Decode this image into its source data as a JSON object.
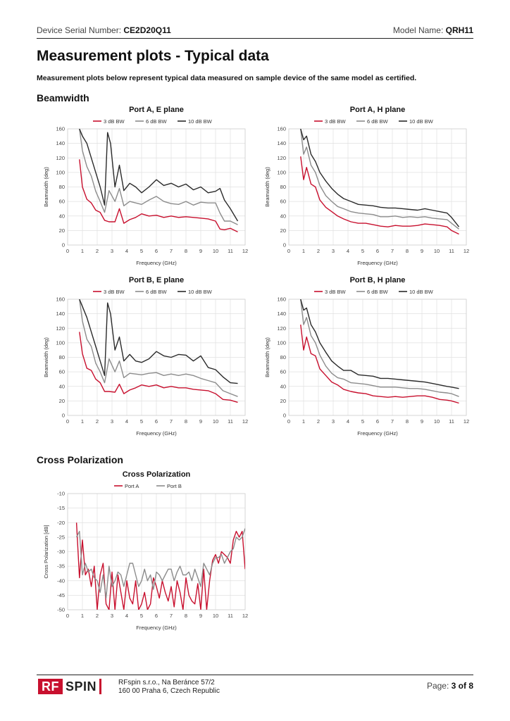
{
  "header": {
    "serial_label": "Device Serial Number:",
    "serial_value": "CE2D20Q11",
    "model_label": "Model Name:",
    "model_value": "QRH11"
  },
  "page_title": "Measurement plots - Typical data",
  "subtitle": "Measurement plots below represent typical data measured on sample device of the same model as certified.",
  "sections": {
    "beamwidth": "Beamwidth",
    "cross_polarization": "Cross Polarization"
  },
  "colors": {
    "bw3": "#c8102e",
    "bw6": "#8c8c8c",
    "bw10": "#2a2a2a",
    "portA": "#c8102e",
    "portB": "#8c8c8c"
  },
  "footer": {
    "logo_rf": "RF",
    "logo_spin": "SPIN",
    "address_line1": "RFspin s.r.o., Na Beránce 57/2",
    "address_line2": "160 00 Praha 6, Czech Republic",
    "page_label": "Page:",
    "page_value": "3 of 8"
  },
  "chart_data": [
    {
      "type": "line",
      "title": "Port A, E plane",
      "xlabel": "Frequency (GHz)",
      "ylabel": "Beamwidth (deg)",
      "xlim": [
        0,
        12
      ],
      "ylim": [
        0,
        160
      ],
      "xticks": [
        0,
        1,
        2,
        3,
        4,
        5,
        6,
        7,
        8,
        9,
        10,
        11,
        12
      ],
      "yticks": [
        0,
        20,
        40,
        60,
        80,
        100,
        120,
        140,
        160
      ],
      "grid": true,
      "legend": "top",
      "series": [
        {
          "name": "3 dB BW",
          "x": [
            0.8,
            1,
            1.3,
            1.6,
            1.9,
            2.2,
            2.5,
            2.8,
            3.2,
            3.5,
            3.8,
            4.2,
            4.6,
            5,
            5.5,
            6,
            6.5,
            7,
            7.5,
            8,
            8.5,
            9,
            9.5,
            10,
            10.3,
            10.6,
            11,
            11.5
          ],
          "y": [
            118,
            80,
            63,
            58,
            48,
            45,
            34,
            32,
            32,
            50,
            30,
            35,
            38,
            43,
            40,
            41,
            38,
            40,
            38,
            39,
            38,
            37,
            36,
            33,
            22,
            21,
            23,
            18
          ]
        },
        {
          "name": "6 dB BW",
          "x": [
            0.8,
            1,
            1.3,
            1.6,
            1.9,
            2.2,
            2.5,
            2.8,
            3.2,
            3.5,
            3.8,
            4.2,
            4.6,
            5,
            5.5,
            6,
            6.5,
            7,
            7.5,
            8,
            8.5,
            9,
            9.5,
            10,
            10.3,
            10.6,
            11,
            11.5
          ],
          "y": [
            160,
            130,
            108,
            95,
            74,
            60,
            45,
            75,
            60,
            78,
            54,
            60,
            58,
            56,
            62,
            67,
            60,
            57,
            56,
            60,
            55,
            59,
            58,
            58,
            44,
            33,
            33,
            28
          ]
        },
        {
          "name": "10 dB BW",
          "x": [
            0.8,
            1,
            1.3,
            1.6,
            1.9,
            2.2,
            2.5,
            2.7,
            2.9,
            3.2,
            3.5,
            3.8,
            4.2,
            4.6,
            5,
            5.5,
            6,
            6.5,
            7,
            7.5,
            8,
            8.5,
            9,
            9.5,
            10,
            10.3,
            10.6,
            11,
            11.5
          ],
          "y": [
            160,
            150,
            140,
            120,
            100,
            80,
            55,
            155,
            140,
            80,
            110,
            75,
            85,
            80,
            72,
            80,
            90,
            82,
            85,
            80,
            84,
            76,
            80,
            72,
            74,
            78,
            62,
            50,
            33
          ]
        }
      ]
    },
    {
      "type": "line",
      "title": "Port A, H plane",
      "xlabel": "Frequency (GHz)",
      "ylabel": "Beamwidth (deg)",
      "xlim": [
        0,
        12
      ],
      "ylim": [
        0,
        160
      ],
      "xticks": [
        0,
        1,
        2,
        3,
        4,
        5,
        6,
        7,
        8,
        9,
        10,
        11,
        12
      ],
      "yticks": [
        0,
        20,
        40,
        60,
        80,
        100,
        120,
        140,
        160
      ],
      "grid": true,
      "legend": "top",
      "series": [
        {
          "name": "3 dB BW",
          "x": [
            0.8,
            1,
            1.2,
            1.5,
            1.8,
            2.1,
            2.5,
            2.9,
            3.3,
            3.7,
            4.2,
            4.7,
            5.2,
            5.7,
            6.2,
            6.7,
            7.2,
            7.7,
            8.2,
            8.7,
            9.2,
            9.7,
            10.2,
            10.7,
            11,
            11.5
          ],
          "y": [
            122,
            90,
            107,
            84,
            80,
            62,
            52,
            46,
            40,
            36,
            32,
            30,
            30,
            28,
            26,
            25,
            27,
            26,
            26,
            27,
            29,
            28,
            27,
            25,
            20,
            15
          ]
        },
        {
          "name": "6 dB BW",
          "x": [
            0.8,
            1,
            1.2,
            1.5,
            1.8,
            2.1,
            2.5,
            2.9,
            3.3,
            3.7,
            4.2,
            4.7,
            5.2,
            5.7,
            6.2,
            6.7,
            7.2,
            7.7,
            8.2,
            8.7,
            9.2,
            9.7,
            10.2,
            10.7,
            11,
            11.5
          ],
          "y": [
            160,
            125,
            135,
            110,
            100,
            82,
            68,
            60,
            53,
            50,
            46,
            44,
            43,
            42,
            39,
            39,
            40,
            38,
            39,
            38,
            39,
            37,
            36,
            35,
            30,
            22
          ]
        },
        {
          "name": "10 dB BW",
          "x": [
            0.8,
            1,
            1.2,
            1.5,
            1.8,
            2.1,
            2.5,
            2.9,
            3.3,
            3.7,
            4.2,
            4.7,
            5.2,
            5.7,
            6.2,
            6.7,
            7.2,
            7.7,
            8.2,
            8.7,
            9.2,
            9.7,
            10.2,
            10.7,
            11,
            11.5
          ],
          "y": [
            160,
            145,
            150,
            125,
            115,
            100,
            88,
            78,
            70,
            64,
            60,
            56,
            55,
            54,
            52,
            51,
            51,
            50,
            49,
            48,
            50,
            48,
            46,
            44,
            38,
            25
          ]
        }
      ]
    },
    {
      "type": "line",
      "title": "Port B, E plane",
      "xlabel": "Frequency (GHz)",
      "ylabel": "Beamwidth (deg)",
      "xlim": [
        0,
        12
      ],
      "ylim": [
        0,
        160
      ],
      "xticks": [
        0,
        1,
        2,
        3,
        4,
        5,
        6,
        7,
        8,
        9,
        10,
        11,
        12
      ],
      "yticks": [
        0,
        20,
        40,
        60,
        80,
        100,
        120,
        140,
        160
      ],
      "grid": true,
      "legend": "top",
      "series": [
        {
          "name": "3 dB BW",
          "x": [
            0.8,
            1,
            1.3,
            1.6,
            1.9,
            2.2,
            2.5,
            2.8,
            3.2,
            3.5,
            3.8,
            4.2,
            4.6,
            5,
            5.5,
            6,
            6.5,
            7,
            7.5,
            8,
            8.5,
            9,
            9.5,
            10,
            10.5,
            11,
            11.5
          ],
          "y": [
            115,
            85,
            65,
            62,
            50,
            45,
            33,
            33,
            32,
            43,
            30,
            35,
            38,
            42,
            40,
            42,
            38,
            40,
            38,
            38,
            36,
            35,
            34,
            30,
            22,
            21,
            18
          ]
        },
        {
          "name": "6 dB BW",
          "x": [
            0.8,
            1,
            1.3,
            1.6,
            1.9,
            2.2,
            2.5,
            2.8,
            3.2,
            3.5,
            3.8,
            4.2,
            4.6,
            5,
            5.5,
            6,
            6.5,
            7,
            7.5,
            8,
            8.5,
            9,
            9.5,
            10,
            10.5,
            11,
            11.5
          ],
          "y": [
            160,
            130,
            105,
            95,
            72,
            60,
            45,
            78,
            60,
            75,
            52,
            58,
            57,
            56,
            58,
            59,
            55,
            57,
            55,
            57,
            55,
            51,
            48,
            45,
            34,
            30,
            26
          ]
        },
        {
          "name": "10 dB BW",
          "x": [
            0.8,
            1,
            1.3,
            1.6,
            1.9,
            2.2,
            2.5,
            2.7,
            2.9,
            3.2,
            3.5,
            3.8,
            4.2,
            4.6,
            5,
            5.5,
            6,
            6.5,
            7,
            7.5,
            8,
            8.5,
            9,
            9.5,
            10,
            10.5,
            11,
            11.5
          ],
          "y": [
            160,
            150,
            135,
            115,
            95,
            75,
            55,
            155,
            140,
            90,
            108,
            75,
            84,
            75,
            73,
            78,
            88,
            82,
            80,
            84,
            83,
            75,
            82,
            66,
            63,
            53,
            45,
            44
          ]
        }
      ]
    },
    {
      "type": "line",
      "title": "Port B, H plane",
      "xlabel": "Frequency (GHz)",
      "ylabel": "Beamwidth (deg)",
      "xlim": [
        0,
        12
      ],
      "ylim": [
        0,
        160
      ],
      "xticks": [
        0,
        1,
        2,
        3,
        4,
        5,
        6,
        7,
        8,
        9,
        10,
        11,
        12
      ],
      "yticks": [
        0,
        20,
        40,
        60,
        80,
        100,
        120,
        140,
        160
      ],
      "grid": true,
      "legend": "top",
      "series": [
        {
          "name": "3 dB BW",
          "x": [
            0.8,
            1,
            1.2,
            1.5,
            1.8,
            2.1,
            2.5,
            2.9,
            3.3,
            3.7,
            4.2,
            4.7,
            5.2,
            5.7,
            6.2,
            6.7,
            7.2,
            7.7,
            8.2,
            8.7,
            9.2,
            9.7,
            10.2,
            10.7,
            11,
            11.5
          ],
          "y": [
            125,
            90,
            108,
            85,
            82,
            64,
            55,
            46,
            42,
            36,
            33,
            31,
            30,
            27,
            26,
            25,
            26,
            25,
            26,
            27,
            27,
            25,
            22,
            21,
            20,
            17
          ]
        },
        {
          "name": "6 dB BW",
          "x": [
            0.8,
            1,
            1.2,
            1.5,
            1.8,
            2.1,
            2.5,
            2.9,
            3.3,
            3.7,
            4.2,
            4.7,
            5.2,
            5.7,
            6.2,
            6.7,
            7.2,
            7.7,
            8.2,
            8.7,
            9.2,
            9.7,
            10.2,
            10.7,
            11,
            11.5
          ],
          "y": [
            160,
            125,
            135,
            110,
            100,
            83,
            68,
            58,
            52,
            50,
            45,
            44,
            43,
            41,
            39,
            39,
            39,
            38,
            37,
            37,
            36,
            34,
            32,
            31,
            30,
            26
          ]
        },
        {
          "name": "10 dB BW",
          "x": [
            0.8,
            1,
            1.2,
            1.5,
            1.8,
            2.1,
            2.5,
            2.9,
            3.3,
            3.7,
            4.2,
            4.7,
            5.2,
            5.7,
            6.2,
            6.7,
            7.2,
            7.7,
            8.2,
            8.7,
            9.2,
            9.7,
            10.2,
            10.7,
            11,
            11.5
          ],
          "y": [
            160,
            145,
            148,
            125,
            115,
            100,
            87,
            75,
            68,
            62,
            62,
            56,
            55,
            54,
            51,
            51,
            50,
            49,
            48,
            47,
            46,
            44,
            42,
            40,
            39,
            37
          ]
        }
      ]
    },
    {
      "type": "line",
      "title": "Cross Polarization",
      "xlabel": "Frequency (GHz)",
      "ylabel": "Cross Polarization [dB]",
      "xlim": [
        0,
        12
      ],
      "ylim": [
        -50,
        -10
      ],
      "xticks": [
        0,
        1,
        2,
        3,
        4,
        5,
        6,
        7,
        8,
        9,
        10,
        11,
        12
      ],
      "yticks": [
        -10,
        -15,
        -20,
        -25,
        -30,
        -35,
        -40,
        -45,
        -50
      ],
      "grid": true,
      "legend": "top",
      "series": [
        {
          "name": "Port A",
          "x": [
            0.6,
            0.8,
            1,
            1.2,
            1.4,
            1.6,
            1.8,
            2,
            2.2,
            2.4,
            2.6,
            2.8,
            3,
            3.2,
            3.4,
            3.6,
            3.8,
            4,
            4.2,
            4.4,
            4.6,
            4.8,
            5,
            5.2,
            5.4,
            5.6,
            5.8,
            6,
            6.2,
            6.4,
            6.6,
            6.8,
            7,
            7.2,
            7.4,
            7.6,
            7.8,
            8,
            8.2,
            8.4,
            8.6,
            8.8,
            9,
            9.2,
            9.4,
            9.6,
            9.8,
            10,
            10.2,
            10.4,
            10.6,
            10.8,
            11,
            11.2,
            11.4,
            11.6,
            11.8,
            12
          ],
          "y": [
            -20,
            -39,
            -26,
            -38,
            -36,
            -42,
            -35,
            -50,
            -38,
            -34,
            -48,
            -50,
            -37,
            -50,
            -38,
            -44,
            -50,
            -40,
            -46,
            -48,
            -40,
            -50,
            -48,
            -44,
            -50,
            -48,
            -39,
            -42,
            -46,
            -40,
            -44,
            -47,
            -42,
            -49,
            -40,
            -44,
            -50,
            -39,
            -45,
            -47,
            -48,
            -41,
            -50,
            -36,
            -50,
            -40,
            -33,
            -31,
            -34,
            -30,
            -31,
            -32,
            -34,
            -26,
            -23,
            -25,
            -23,
            -36
          ]
        },
        {
          "name": "Port B",
          "x": [
            0.6,
            0.8,
            1,
            1.2,
            1.4,
            1.6,
            1.8,
            2,
            2.2,
            2.4,
            2.6,
            2.8,
            3,
            3.2,
            3.4,
            3.6,
            3.8,
            4,
            4.2,
            4.4,
            4.6,
            4.8,
            5,
            5.2,
            5.4,
            5.6,
            5.8,
            6,
            6.2,
            6.4,
            6.6,
            6.8,
            7,
            7.2,
            7.4,
            7.6,
            7.8,
            8,
            8.2,
            8.4,
            8.6,
            8.8,
            9,
            9.2,
            9.4,
            9.6,
            9.8,
            10,
            10.2,
            10.4,
            10.6,
            10.8,
            11,
            11.2,
            11.4,
            11.6,
            11.8,
            12
          ],
          "y": [
            -25,
            -23,
            -38,
            -34,
            -37,
            -36,
            -39,
            -40,
            -44,
            -38,
            -46,
            -35,
            -42,
            -40,
            -37,
            -38,
            -42,
            -38,
            -34,
            -34,
            -38,
            -42,
            -40,
            -36,
            -40,
            -38,
            -43,
            -37,
            -38,
            -40,
            -38,
            -36,
            -36,
            -40,
            -37,
            -35,
            -38,
            -38,
            -37,
            -40,
            -36,
            -39,
            -42,
            -34,
            -36,
            -38,
            -34,
            -32,
            -32,
            -31,
            -34,
            -32,
            -30,
            -29,
            -25,
            -26,
            -25,
            -22
          ]
        }
      ]
    }
  ]
}
